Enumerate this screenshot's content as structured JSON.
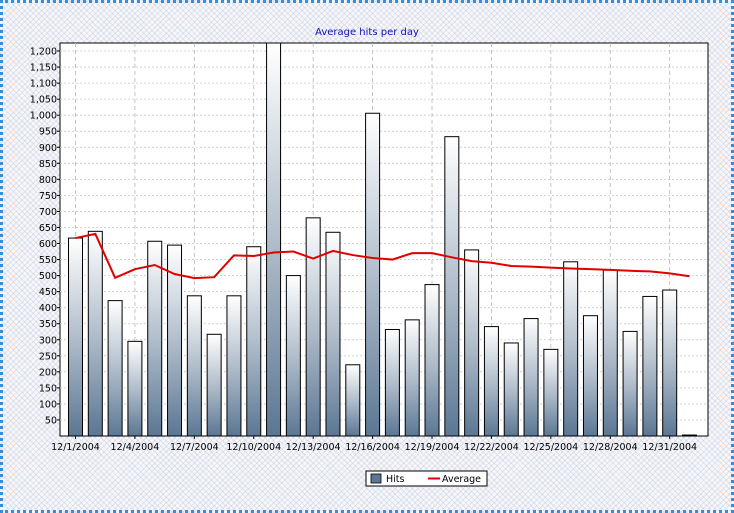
{
  "chart_data": {
    "type": "bar",
    "title": "Average hits per day",
    "xlabel": "",
    "ylabel": "",
    "ylim": [
      0,
      1225
    ],
    "y_ticks": [
      50,
      100,
      150,
      200,
      250,
      300,
      350,
      400,
      450,
      500,
      550,
      600,
      650,
      700,
      750,
      800,
      850,
      900,
      950,
      1000,
      1050,
      1100,
      1150,
      1200
    ],
    "y_tick_labels": [
      "50",
      "100",
      "150",
      "200",
      "250",
      "300",
      "350",
      "400",
      "450",
      "500",
      "550",
      "600",
      "650",
      "700",
      "750",
      "800",
      "850",
      "900",
      "950",
      "1,000",
      "1,050",
      "1,100",
      "1,150",
      "1,200"
    ],
    "categories": [
      "12/1/2004",
      "12/2/2004",
      "12/3/2004",
      "12/4/2004",
      "12/5/2004",
      "12/6/2004",
      "12/7/2004",
      "12/8/2004",
      "12/9/2004",
      "12/10/2004",
      "12/11/2004",
      "12/12/2004",
      "12/13/2004",
      "12/14/2004",
      "12/15/2004",
      "12/16/2004",
      "12/17/2004",
      "12/18/2004",
      "12/19/2004",
      "12/20/2004",
      "12/21/2004",
      "12/22/2004",
      "12/23/2004",
      "12/24/2004",
      "12/25/2004",
      "12/26/2004",
      "12/27/2004",
      "12/28/2004",
      "12/29/2004",
      "12/30/2004",
      "12/31/2004",
      "1/1/2005"
    ],
    "x_tick_labels": [
      "12/1/2004",
      "12/4/2004",
      "12/7/2004",
      "12/10/2004",
      "12/13/2004",
      "12/16/2004",
      "12/19/2004",
      "12/22/2004",
      "12/25/2004",
      "12/28/2004",
      "12/31/2004"
    ],
    "series": [
      {
        "name": "Hits",
        "type": "bar",
        "color": "#5b7794",
        "values": [
          617,
          638,
          422,
          295,
          607,
          595,
          437,
          317,
          437,
          590,
          1260,
          500,
          680,
          635,
          222,
          1006,
          332,
          362,
          472,
          933,
          580,
          341,
          290,
          366,
          270,
          543,
          375,
          517,
          326,
          435,
          455,
          3
        ]
      },
      {
        "name": "Average",
        "type": "line",
        "color": "#e00000",
        "values": [
          617,
          630,
          493,
          520,
          533,
          505,
          492,
          495,
          563,
          561,
          572,
          575,
          553,
          577,
          564,
          555,
          550,
          570,
          570,
          557,
          545,
          540,
          530,
          528,
          525,
          522,
          520,
          518,
          515,
          513,
          507,
          498
        ]
      }
    ],
    "grid": true,
    "legend": "bottom-center"
  }
}
